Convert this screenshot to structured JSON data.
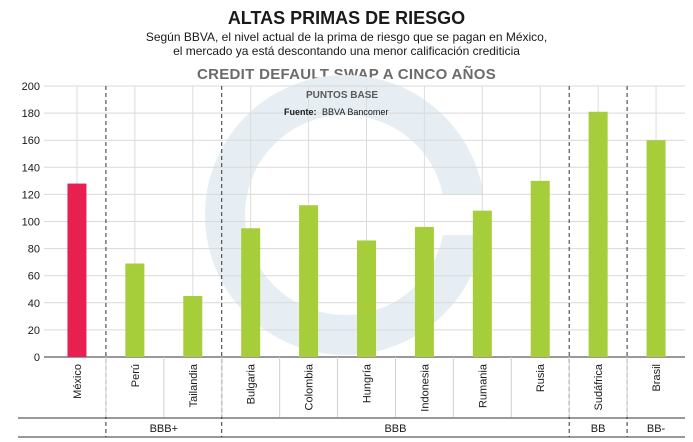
{
  "header": {
    "title": "ALTAS PRIMAS DE RIESGO",
    "subtitle_line1": "Según BBVA, el nivel actual de la prima de riesgo que se pagan en México,",
    "subtitle_line2": "el mercado ya está descontando una menor calificación crediticia"
  },
  "chart_data": {
    "type": "bar",
    "title": "CREDIT DEFAULT SWAP A CINCO AÑOS",
    "unit_label": "PUNTOS BASE",
    "source_label": "Fuente:",
    "source_value": "BBVA Bancomer",
    "categories": [
      "México",
      "Perú",
      "Tailandia",
      "Bulgaria",
      "Colombia",
      "Hungría",
      "Indonesia",
      "Rumania",
      "Rusia",
      "Sudáfrica",
      "Brasil"
    ],
    "values": [
      128,
      69,
      45,
      95,
      112,
      86,
      96,
      108,
      130,
      181,
      160
    ],
    "highlight_color": "#e8204f",
    "bar_color": "#a6cd3a",
    "ylim": [
      0,
      200
    ],
    "yticks": [
      "0",
      "20",
      "40",
      "60",
      "80",
      "100",
      "120",
      "140",
      "160",
      "180",
      "200"
    ],
    "groups": [
      {
        "label": "BBB+",
        "start": 1,
        "end": 2
      },
      {
        "label": "BBB",
        "start": 3,
        "end": 8
      },
      {
        "label": "BB",
        "start": 9,
        "end": 9
      },
      {
        "label": "BB-",
        "start": 10,
        "end": 10
      }
    ],
    "grid": true
  }
}
